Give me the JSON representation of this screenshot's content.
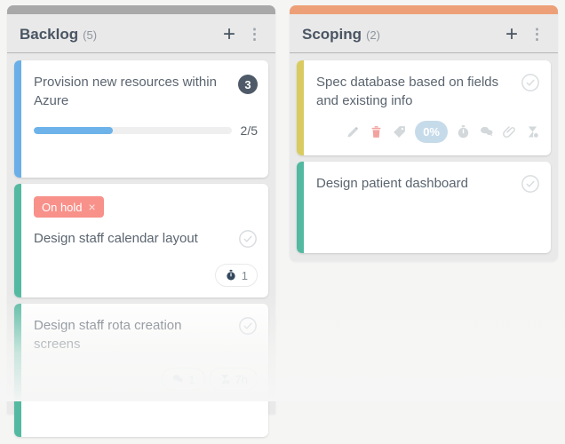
{
  "icons": {
    "plus": "+",
    "kebab": "⋮",
    "close": "×"
  },
  "colors": {
    "badge_slate": "#4e5a68",
    "progress_blue": "#6db3ea",
    "zero_pill_blue": "#c6dbea"
  },
  "board": {
    "columns": [
      {
        "name": "Backlog",
        "count": "(5)",
        "accent": "#a9a9a9",
        "cards": [
          {
            "title": "Provision new resources within Azure",
            "stripe": "#6aafe8",
            "badge_count": "3",
            "progress": {
              "current": 2,
              "total": 5,
              "percent": 40,
              "label": "2/5"
            }
          },
          {
            "title": "Design staff calendar layout",
            "stripe": "#53b9a0",
            "tag": {
              "label": "On hold",
              "color": "#f8918a"
            },
            "timer_count": "1"
          },
          {
            "title": "Design staff rota creation screens",
            "stripe": "#53b9a0",
            "comments_count": "1",
            "time_estimate": "7h"
          }
        ]
      },
      {
        "name": "Scoping",
        "count": "(2)",
        "accent": "#eda077",
        "cards": [
          {
            "title": "Spec database based on fields and existing info",
            "stripe": "#d9cb60",
            "toolbar": {
              "progress_label": "0%"
            }
          },
          {
            "title": "Design patient dashboard",
            "stripe": "#53b9a0"
          }
        ]
      }
    ]
  }
}
